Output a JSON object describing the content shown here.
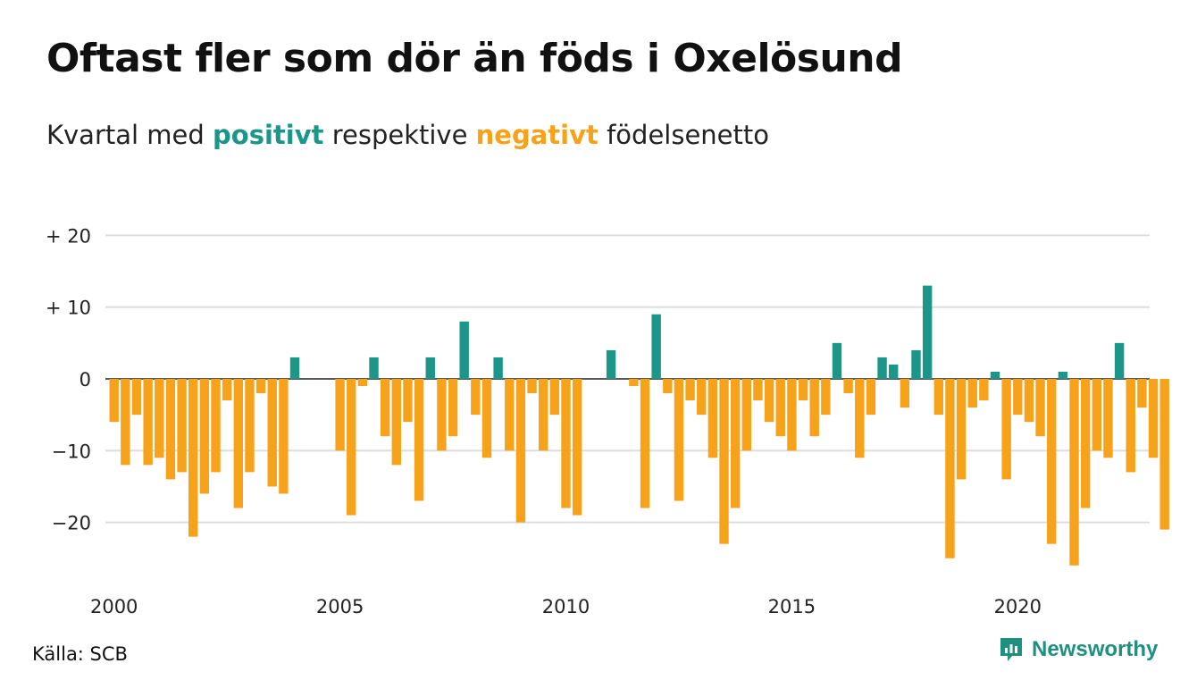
{
  "title": "Oftast fler som dör än föds i Oxelösund",
  "subtitle": {
    "prefix": "Kvartal med ",
    "positive_word": "positivt",
    "middle": " respektive ",
    "negative_word": "negativt",
    "suffix": " födelsenetto"
  },
  "source": "Källa: SCB",
  "brand": {
    "name": "Newsworthy",
    "icon": "newsworthy-logo-icon"
  },
  "colors": {
    "positive": "#1b9688",
    "negative": "#f7a21b",
    "grid": "#dddddd",
    "text": "#111111"
  },
  "chart_data": {
    "type": "bar",
    "x_start": {
      "year": 2000,
      "quarter": 1
    },
    "ylim": [
      -28,
      20
    ],
    "y_ticks": [
      {
        "value": 20,
        "label": "+ 20"
      },
      {
        "value": 10,
        "label": "+ 10"
      },
      {
        "value": 0,
        "label": "0"
      },
      {
        "value": -10,
        "label": "−10"
      },
      {
        "value": -20,
        "label": "−20"
      }
    ],
    "x_ticks": [
      "2000",
      "2005",
      "2010",
      "2015",
      "2020"
    ],
    "grid": true,
    "values": [
      -6,
      -12,
      -5,
      -12,
      -11,
      -14,
      -13,
      -22,
      -16,
      -13,
      -3,
      -18,
      -13,
      -2,
      -15,
      -16,
      3,
      0,
      0,
      0,
      -10,
      -19,
      -1,
      3,
      -8,
      -12,
      -6,
      -17,
      3,
      -10,
      -8,
      8,
      -5,
      -11,
      3,
      -10,
      -20,
      -2,
      -10,
      -5,
      -18,
      -19,
      0,
      0,
      4,
      0,
      -1,
      -18,
      9,
      -2,
      -17,
      -3,
      -5,
      -11,
      -23,
      -18,
      -10,
      -3,
      -6,
      -8,
      -10,
      -3,
      -8,
      -5,
      5,
      -2,
      -11,
      -5,
      3,
      2,
      -4,
      4,
      13,
      -5,
      -25,
      -14,
      -4,
      -3,
      1,
      -14,
      -5,
      -6,
      -8,
      -23,
      1,
      -26,
      -18,
      -10,
      -11,
      5,
      -13,
      -4,
      -11,
      -21
    ]
  }
}
